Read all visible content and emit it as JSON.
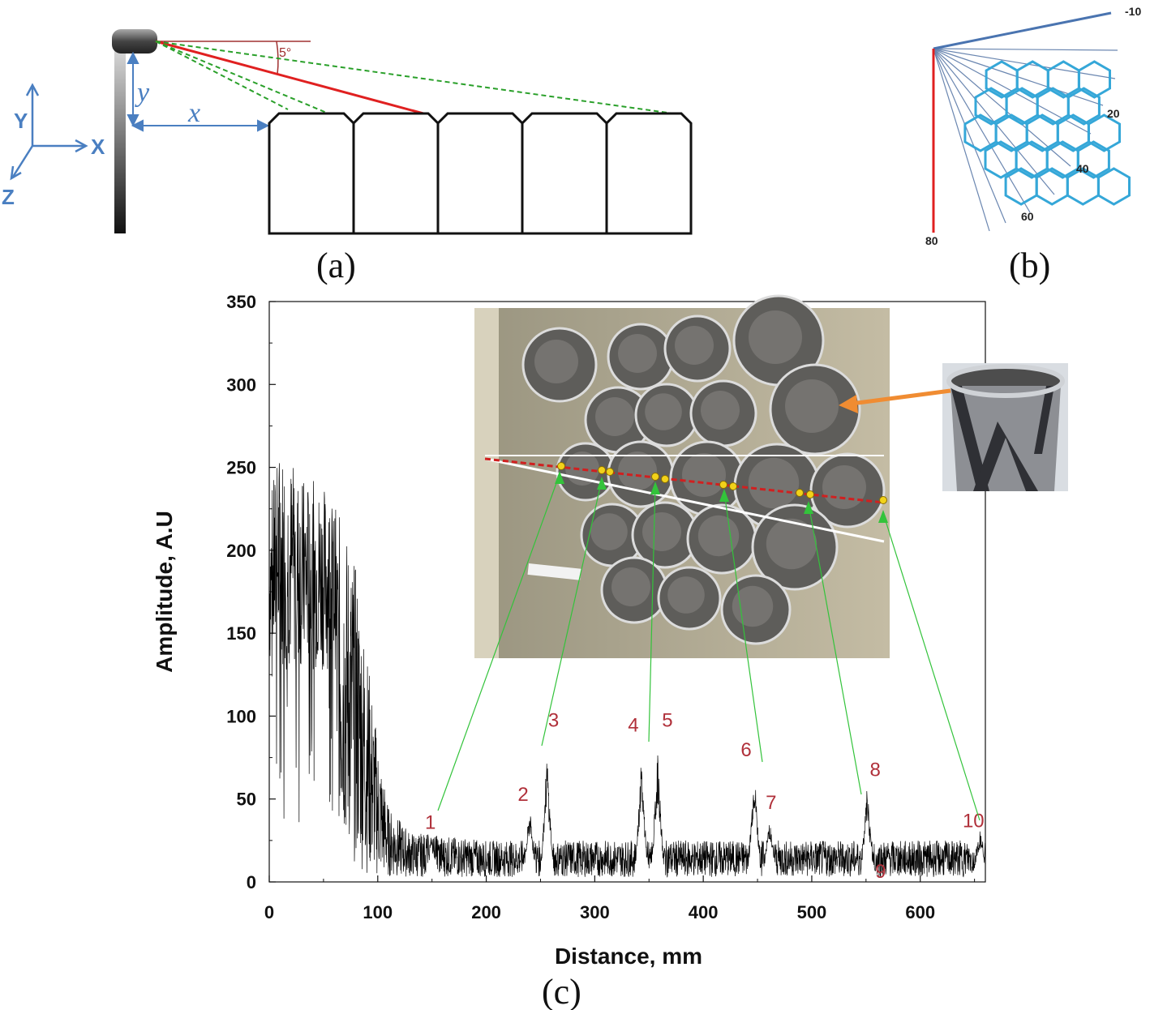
{
  "panel_a": {
    "caption": "(a)",
    "angle_label": "5°",
    "axis_y": "Y",
    "axis_x": "X",
    "axis_z": "Z",
    "dim_y": "y",
    "dim_x": "x",
    "colors": {
      "red": "#e02020",
      "green": "#2aa02a",
      "blue": "#4a7fc1"
    }
  },
  "panel_b": {
    "caption": "(b)",
    "angle_labels": [
      "-10",
      "20",
      "40",
      "60",
      "80"
    ],
    "colors": {
      "hex": "#35a7d8",
      "ray": "#6a86b0",
      "red": "#e02020"
    }
  },
  "panel_c": {
    "caption": "(c)",
    "chart_data": {
      "type": "line",
      "xlabel": "Distance, mm",
      "ylabel": "Amplitude, A.U",
      "xlim": [
        0,
        660
      ],
      "ylim": [
        0,
        350
      ],
      "xticks": [
        0,
        100,
        200,
        300,
        400,
        500,
        600
      ],
      "yticks": [
        0,
        50,
        100,
        150,
        200,
        250,
        300,
        350
      ],
      "series": [
        {
          "color": "#000000",
          "envelope": [
            {
              "x": 0,
              "y_min": 20,
              "y_max": 230
            },
            {
              "x": 10,
              "y_min": 40,
              "y_max": 265
            },
            {
              "x": 30,
              "y_min": 50,
              "y_max": 245
            },
            {
              "x": 50,
              "y_min": 60,
              "y_max": 240
            },
            {
              "x": 70,
              "y_min": 20,
              "y_max": 215
            },
            {
              "x": 80,
              "y_min": 10,
              "y_max": 190
            },
            {
              "x": 90,
              "y_min": 5,
              "y_max": 140
            },
            {
              "x": 100,
              "y_min": 3,
              "y_max": 85
            },
            {
              "x": 110,
              "y_min": 3,
              "y_max": 45
            },
            {
              "x": 130,
              "y_min": 3,
              "y_max": 30
            },
            {
              "x": 200,
              "y_min": 3,
              "y_max": 25
            },
            {
              "x": 660,
              "y_min": 3,
              "y_max": 25
            }
          ],
          "peaks": [
            {
              "label": "1",
              "x": 150,
              "y": 28
            },
            {
              "label": "2",
              "x": 240,
              "y": 45
            },
            {
              "label": "3",
              "x": 256,
              "y": 78
            },
            {
              "label": "4",
              "x": 343,
              "y": 75
            },
            {
              "label": "5",
              "x": 358,
              "y": 78
            },
            {
              "label": "6",
              "x": 447,
              "y": 70
            },
            {
              "label": "7",
              "x": 461,
              "y": 40
            },
            {
              "label": "8",
              "x": 551,
              "y": 58
            },
            {
              "label": "9",
              "x": 553,
              "y": 22
            },
            {
              "label": "10",
              "x": 655,
              "y": 32
            }
          ]
        }
      ]
    },
    "inset_colors": {
      "bg": "#b8b09a",
      "tube": "#5a5a5a",
      "rim": "#e8e8e8",
      "red_line": "#d02020",
      "marker": "#f2d21a",
      "arrow_green": "#2ebd3b",
      "arrow_orange": "#f08c32"
    }
  }
}
